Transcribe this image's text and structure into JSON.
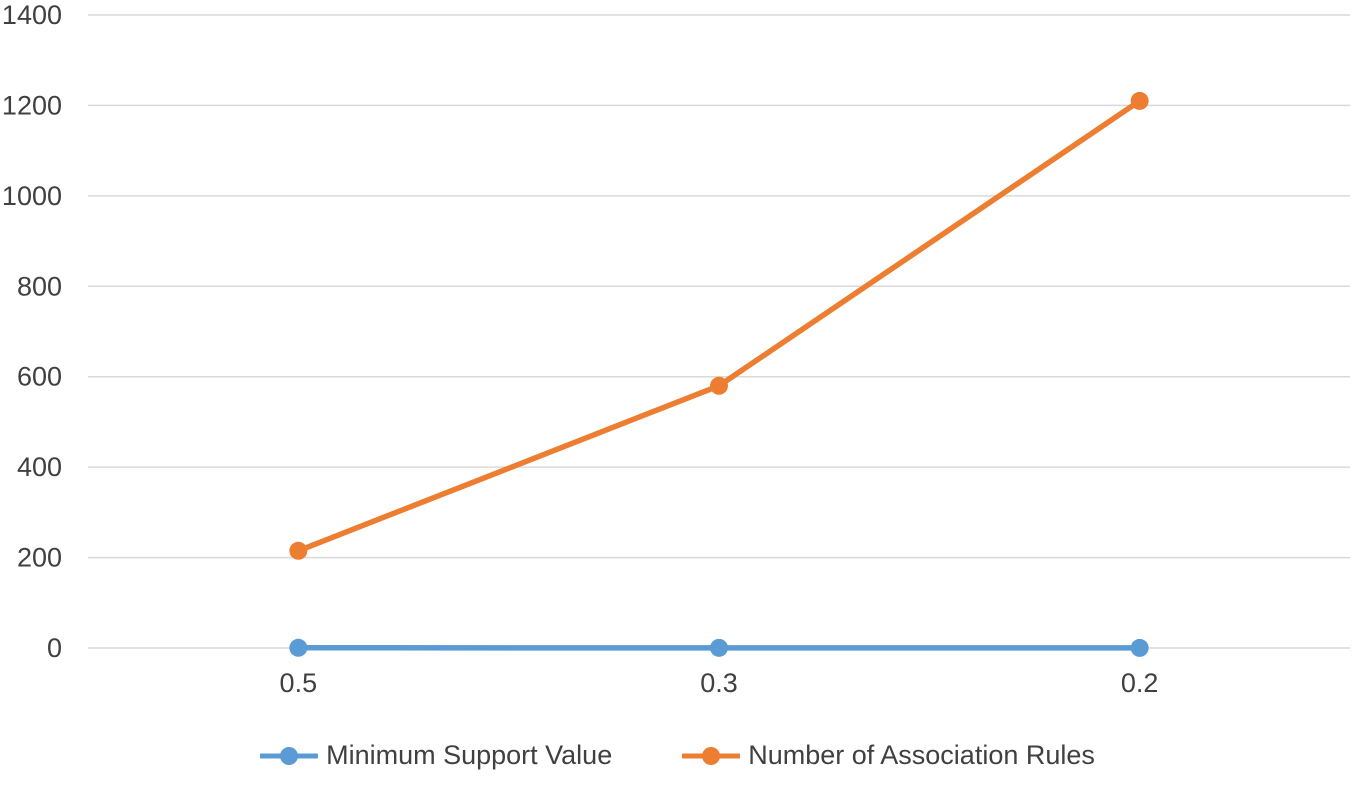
{
  "chart_data": {
    "type": "line",
    "title": "",
    "xlabel": "",
    "ylabel": "",
    "categories": [
      "0.5",
      "0.3",
      "0.2"
    ],
    "series": [
      {
        "name": "Minimum Support Value",
        "values": [
          0.5,
          0.3,
          0.2
        ],
        "color": "#5B9BD5",
        "marker": "circle"
      },
      {
        "name": "Number of Association Rules",
        "values": [
          215,
          580,
          1210
        ],
        "color": "#ED7D31",
        "marker": "circle"
      }
    ],
    "ylim": [
      0,
      1400
    ],
    "y_ticks": [
      0,
      200,
      400,
      600,
      800,
      1000,
      1200,
      1400
    ],
    "grid": "horizontal",
    "gridline_color": "#D9D9D9",
    "axis_text_color": "#404040",
    "legend_position": "bottom"
  }
}
